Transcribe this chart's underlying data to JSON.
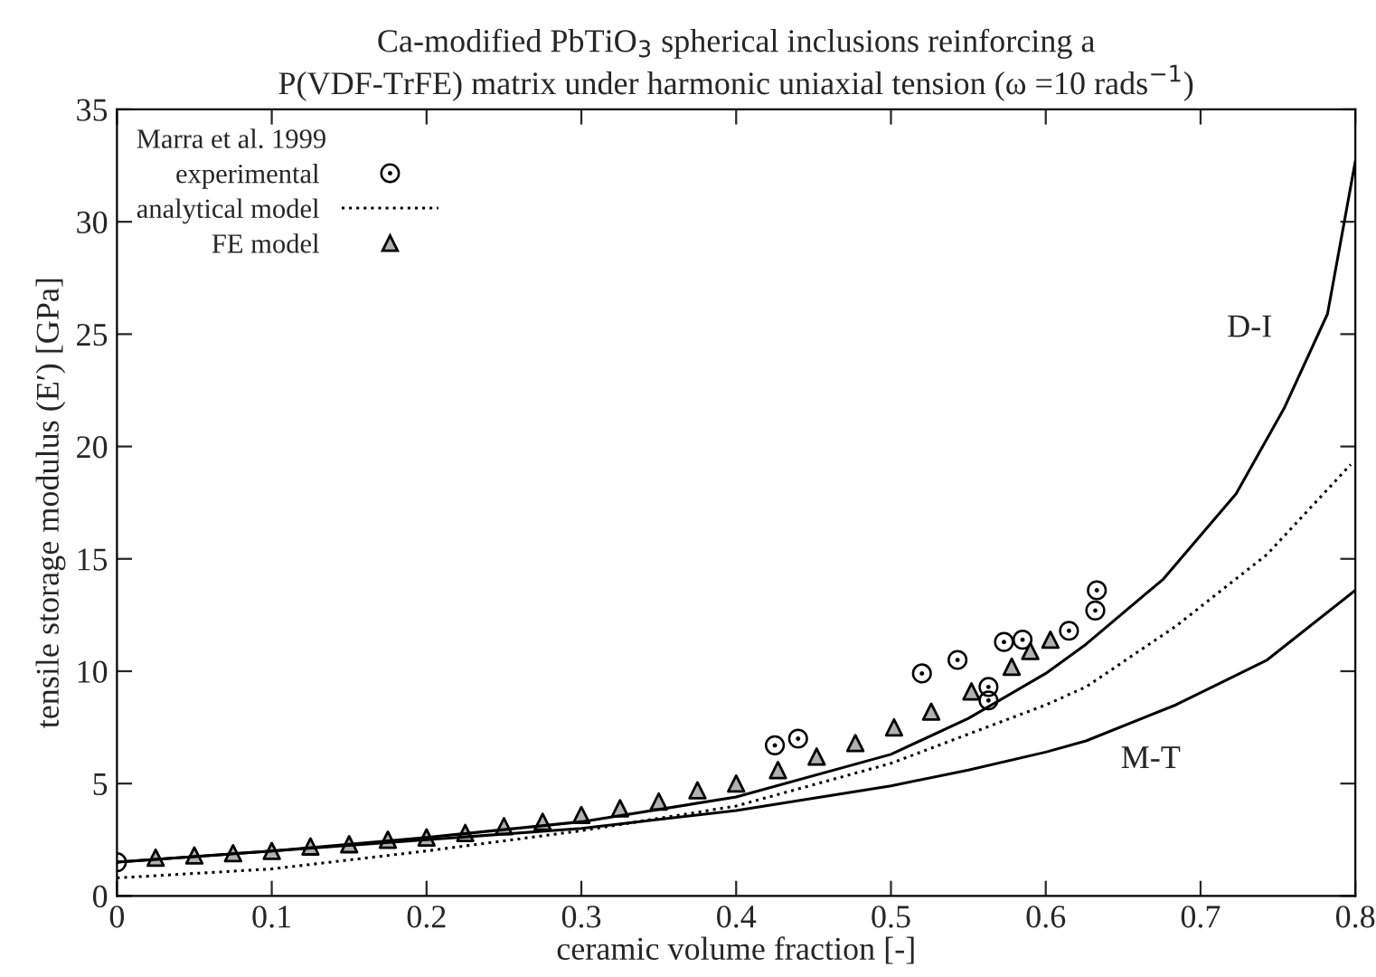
{
  "chart_data": {
    "type": "line",
    "title": "Ca-modified PbTiO$_{3}$ spherical inclusions reinforcing a\nP(VDF-TrFE) matrix under harmonic uniaxial tension (ω =10 rads$^{−1}$)",
    "xlabel": "ceramic volume fraction [-]",
    "ylabel": "tensile storage modulus (E′) [GPa]",
    "legend_title": "Marra et al. 1999",
    "legend": "top left",
    "grid": false,
    "xlim": [
      0,
      0.8
    ],
    "xticks": [
      0,
      0.1,
      0.2,
      0.3,
      0.4,
      0.5,
      0.6,
      0.7,
      0.8
    ],
    "ylim": [
      0,
      35
    ],
    "yticks": [
      0,
      5,
      10,
      15,
      20,
      25,
      30,
      35
    ],
    "series": [
      {
        "name": "experimental",
        "type": "scatter",
        "marker": "circle",
        "color": "#000000",
        "x": [
          0,
          0.425,
          0.44,
          0.52,
          0.543,
          0.573,
          0.585,
          0.563,
          0.563,
          0.615,
          0.632,
          0.633
        ],
        "values": [
          1.5,
          6.7,
          7.0,
          9.9,
          10.5,
          11.3,
          11.4,
          9.3,
          8.7,
          11.8,
          12.7,
          13.6
        ]
      },
      {
        "name": "analytical model",
        "line_style": "dotted",
        "color": "#000000",
        "x": [
          0,
          0.1,
          0.2,
          0.3,
          0.4,
          0.5,
          0.55,
          0.6,
          0.626,
          0.684,
          0.743,
          0.797
        ],
        "values": [
          0.8,
          1.2,
          2.0,
          2.9,
          4.0,
          5.9,
          7.2,
          8.5,
          9.3,
          12.0,
          15.2,
          19.2
        ]
      },
      {
        "name": "FE model",
        "type": "scatter",
        "marker": "triangle",
        "color": "#000000",
        "x": [
          0.025,
          0.05,
          0.075,
          0.1,
          0.125,
          0.15,
          0.175,
          0.2,
          0.225,
          0.25,
          0.275,
          0.3,
          0.325,
          0.35,
          0.375,
          0.4,
          0.427,
          0.452,
          0.477,
          0.502,
          0.526,
          0.552,
          0.578,
          0.59,
          0.603
        ],
        "values": [
          1.7,
          1.8,
          1.9,
          2.0,
          2.2,
          2.3,
          2.5,
          2.6,
          2.8,
          3.1,
          3.3,
          3.6,
          3.9,
          4.2,
          4.7,
          5.0,
          5.6,
          6.2,
          6.8,
          7.5,
          8.2,
          9.1,
          10.2,
          10.9,
          11.4
        ]
      },
      {
        "name": "D-I",
        "line_style": "solid",
        "color": "#000000",
        "x": [
          0,
          0.1,
          0.2,
          0.3,
          0.4,
          0.5,
          0.55,
          0.6,
          0.626,
          0.676,
          0.723,
          0.754,
          0.782,
          0.8
        ],
        "values": [
          1.5,
          2.0,
          2.6,
          3.3,
          4.4,
          6.3,
          7.9,
          9.9,
          11.2,
          14.1,
          17.9,
          21.7,
          25.9,
          32.7
        ]
      },
      {
        "name": "M-T",
        "line_style": "solid",
        "color": "#000000",
        "x": [
          0,
          0.1,
          0.2,
          0.3,
          0.4,
          0.5,
          0.55,
          0.6,
          0.626,
          0.684,
          0.743,
          0.8
        ],
        "values": [
          1.5,
          2.0,
          2.5,
          3.0,
          3.8,
          4.9,
          5.6,
          6.4,
          6.9,
          8.5,
          10.5,
          13.6
        ]
      }
    ]
  }
}
